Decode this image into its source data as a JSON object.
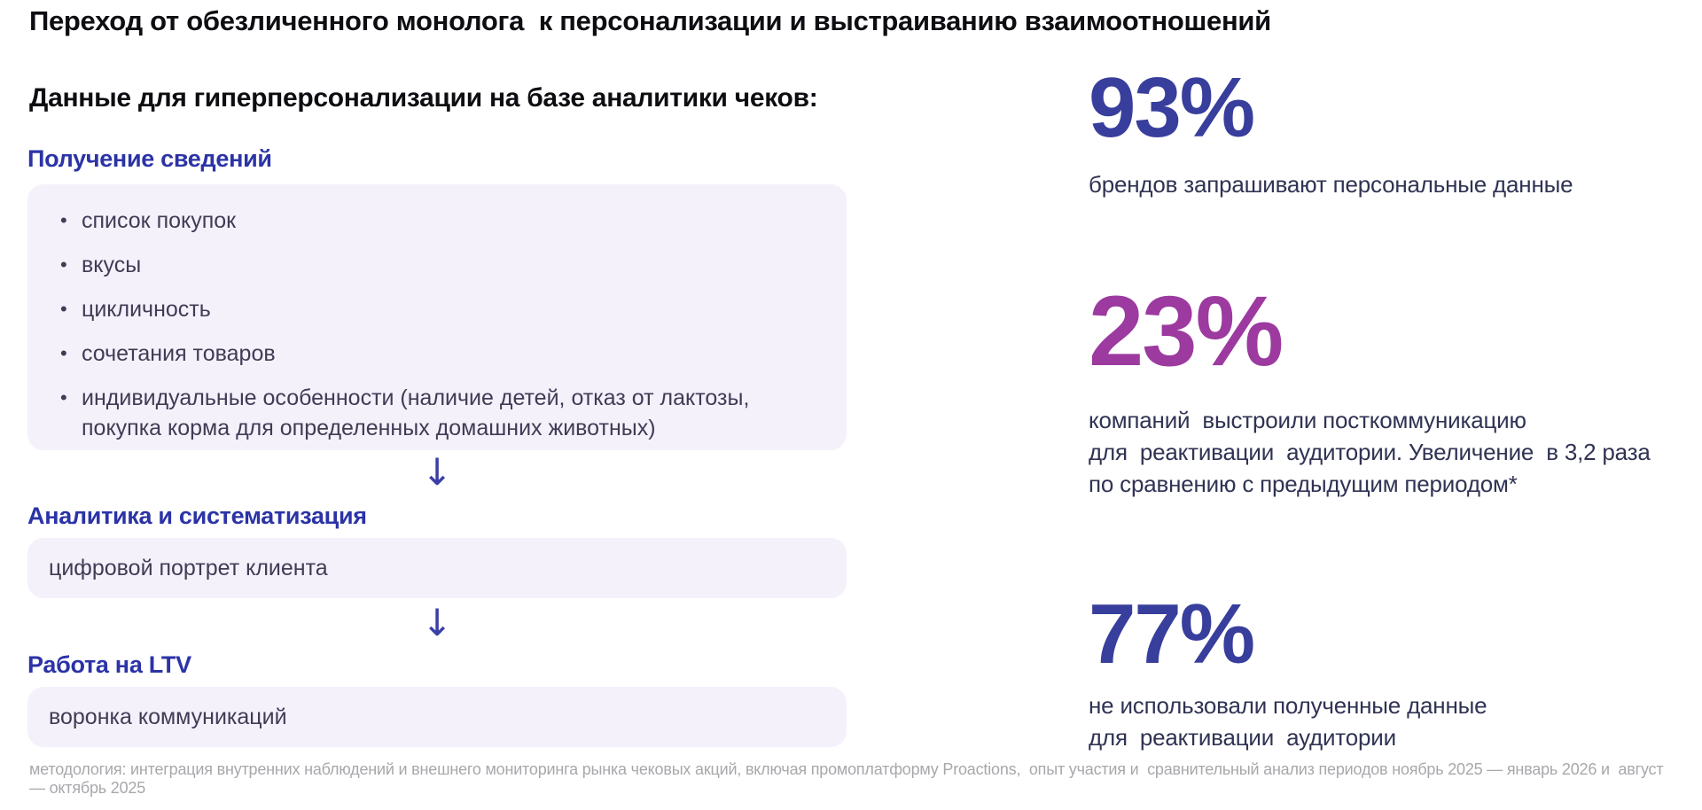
{
  "slide": {
    "title": "Переход от обезличенного монолога  к персонализации и выстраиванию взаимоотношений",
    "subtitle": "Данные для гиперперсонализации на базе аналитики чеков:",
    "footer": "методология: интеграция внутренних наблюдений и внешнего мониторинга рынка чековых акций, включая промоплатформу Proactions,  опыт участия и  сравнительный анализ периодов ноябрь 2025 — январь 2026 и  август — октябрь 2025"
  },
  "flow": {
    "arrow_glyph": "↓",
    "steps": [
      {
        "heading": "Получение сведений",
        "items": [
          "список покупок",
          "вкусы",
          "цикличность",
          "сочетания товаров",
          "индивидуальные особенности (наличие детей, отказ от лактозы, покупка корма для определенных домашних животных)"
        ]
      },
      {
        "heading": "Аналитика и систематизация",
        "text": "цифровой портрет клиента"
      },
      {
        "heading": "Работа на LTV",
        "text": "воронка коммуникаций"
      }
    ]
  },
  "stats": [
    {
      "value": "93%",
      "color": "#383e9c",
      "lines": [
        "брендов запрашивают персональные данные"
      ]
    },
    {
      "value": "23%",
      "color": "#9c3aa0",
      "lines": [
        "компаний  выстроили посткоммуникацию",
        "для  реактивации  аудитории. Увеличение  в 3,2 раза",
        "по сравнению с предыдущим периодом*"
      ]
    },
    {
      "value": "77%",
      "color": "#383e9c",
      "lines": [
        "не использовали полученные данные",
        "для  реактивации  аудитории"
      ]
    }
  ],
  "colors": {
    "heading_blue": "#2b33a6",
    "stat_indigo": "#383e9c",
    "stat_magenta": "#9c3aa0",
    "box_background": "#f4f1fb",
    "body_text": "#413b55",
    "caption_text": "#303353",
    "footer_gray": "#a8a8ac"
  }
}
